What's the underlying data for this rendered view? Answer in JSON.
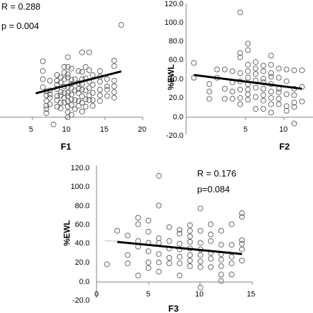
{
  "colors": {
    "points": "#555555",
    "trend": "#000000",
    "axis": "#808080"
  },
  "chart_data": [
    {
      "type": "scatter",
      "title": "",
      "xlabel": "F1",
      "ylabel": "",
      "xlim": [
        0,
        20
      ],
      "ylim": [
        -20,
        120
      ],
      "xticks": [
        "5",
        "10",
        "15",
        "20"
      ],
      "yticks": [],
      "stats": {
        "r": "R = 0.288",
        "p": "p = 0.004"
      },
      "trendline": {
        "x": [
          5,
          17
        ],
        "y": [
          29.5,
          56.5
        ]
      },
      "points": [
        [
          6,
          69
        ],
        [
          6,
          57
        ],
        [
          6,
          47
        ],
        [
          6,
          37
        ],
        [
          6.5,
          32
        ],
        [
          6.5,
          27
        ],
        [
          6.5,
          20
        ],
        [
          6.5,
          14
        ],
        [
          6.5,
          10
        ],
        [
          6.5,
          5
        ],
        [
          7,
          45
        ],
        [
          7,
          33
        ],
        [
          7,
          28
        ],
        [
          7,
          24
        ],
        [
          7,
          16
        ],
        [
          7.5,
          -9
        ],
        [
          8,
          52
        ],
        [
          8,
          45
        ],
        [
          8,
          40
        ],
        [
          8,
          35
        ],
        [
          8,
          26
        ],
        [
          8,
          21
        ],
        [
          8,
          13
        ],
        [
          8.5,
          49
        ],
        [
          8.5,
          43
        ],
        [
          8.5,
          31
        ],
        [
          8.5,
          27
        ],
        [
          8.5,
          18
        ],
        [
          8.5,
          11
        ],
        [
          9,
          62
        ],
        [
          9,
          55
        ],
        [
          9,
          47
        ],
        [
          9,
          38
        ],
        [
          9,
          30
        ],
        [
          9,
          24
        ],
        [
          9,
          18
        ],
        [
          9.5,
          74
        ],
        [
          9.5,
          62
        ],
        [
          9.5,
          53
        ],
        [
          9.5,
          49
        ],
        [
          9.5,
          37
        ],
        [
          9.5,
          30
        ],
        [
          9.5,
          26
        ],
        [
          9.5,
          20
        ],
        [
          9.5,
          13
        ],
        [
          9.5,
          6
        ],
        [
          9.5,
          0
        ],
        [
          10,
          60
        ],
        [
          10,
          46
        ],
        [
          10,
          41
        ],
        [
          10,
          36
        ],
        [
          10,
          28
        ],
        [
          10,
          22
        ],
        [
          10,
          15
        ],
        [
          10,
          3
        ],
        [
          10.5,
          47
        ],
        [
          10.5,
          33
        ],
        [
          10.5,
          21
        ],
        [
          10.5,
          10
        ],
        [
          11,
          57
        ],
        [
          11,
          42
        ],
        [
          11,
          35
        ],
        [
          11,
          30
        ],
        [
          11,
          20
        ],
        [
          11,
          14
        ],
        [
          11.5,
          80
        ],
        [
          11.5,
          56
        ],
        [
          11.5,
          47
        ],
        [
          11.5,
          41
        ],
        [
          11.5,
          34
        ],
        [
          11.5,
          26
        ],
        [
          11.5,
          18
        ],
        [
          11.5,
          7
        ],
        [
          12,
          62
        ],
        [
          12,
          48
        ],
        [
          12,
          33
        ],
        [
          12,
          22
        ],
        [
          12,
          13
        ],
        [
          12.5,
          80
        ],
        [
          12.5,
          58
        ],
        [
          12.5,
          44
        ],
        [
          12.5,
          36
        ],
        [
          12.5,
          27
        ],
        [
          12.5,
          21
        ],
        [
          13,
          52
        ],
        [
          13,
          40
        ],
        [
          13,
          30
        ],
        [
          13,
          21
        ],
        [
          13,
          14
        ],
        [
          14,
          57
        ],
        [
          14,
          50
        ],
        [
          14,
          44
        ],
        [
          14,
          34
        ],
        [
          14,
          27
        ],
        [
          14,
          20
        ],
        [
          15,
          47
        ],
        [
          15,
          38
        ],
        [
          15,
          34
        ],
        [
          15,
          26
        ],
        [
          16,
          70
        ],
        [
          16,
          63
        ],
        [
          16,
          45
        ],
        [
          16,
          38
        ],
        [
          16,
          31
        ],
        [
          16,
          24
        ],
        [
          17,
          114
        ]
      ]
    },
    {
      "type": "scatter",
      "title": "",
      "xlabel": "F2",
      "ylabel": "%EWL",
      "xlim": [
        0,
        15
      ],
      "ylim": [
        -20,
        120
      ],
      "xticks": [
        "5",
        "10"
      ],
      "yticks": [
        "120.0",
        "100.0",
        "80.0",
        "60.0",
        "40.0",
        "20.0",
        "0.0",
        "-20.0"
      ],
      "stats": {
        "r": "",
        "p": ""
      },
      "trendline": {
        "x": [
          1,
          15
        ],
        "y": [
          46,
          31
        ]
      },
      "points": [
        [
          1,
          59
        ],
        [
          1,
          43
        ],
        [
          3,
          20
        ],
        [
          3,
          28
        ],
        [
          3,
          36
        ],
        [
          4,
          52
        ],
        [
          4,
          43
        ],
        [
          5,
          52
        ],
        [
          5,
          31
        ],
        [
          5,
          20
        ],
        [
          6,
          50
        ],
        [
          6,
          38
        ],
        [
          6,
          28
        ],
        [
          6,
          20
        ],
        [
          7,
          114
        ],
        [
          7,
          70
        ],
        [
          7,
          65
        ],
        [
          7,
          48
        ],
        [
          7,
          39
        ],
        [
          7,
          30
        ],
        [
          7,
          21
        ],
        [
          7,
          14
        ],
        [
          8,
          80
        ],
        [
          8,
          73
        ],
        [
          8,
          57
        ],
        [
          8,
          50
        ],
        [
          8,
          43
        ],
        [
          8,
          36
        ],
        [
          8,
          30
        ],
        [
          8,
          25
        ],
        [
          8,
          19
        ],
        [
          9,
          60
        ],
        [
          9,
          53
        ],
        [
          9,
          47
        ],
        [
          9,
          40
        ],
        [
          9,
          32
        ],
        [
          9,
          22
        ],
        [
          9,
          9
        ],
        [
          10,
          56
        ],
        [
          10,
          50
        ],
        [
          10,
          42
        ],
        [
          10,
          38
        ],
        [
          10,
          31
        ],
        [
          10,
          24
        ],
        [
          10,
          18
        ],
        [
          10,
          9
        ],
        [
          11,
          67
        ],
        [
          11,
          57
        ],
        [
          11,
          48
        ],
        [
          11,
          44
        ],
        [
          11,
          36
        ],
        [
          11,
          28
        ],
        [
          11,
          21
        ],
        [
          11,
          14
        ],
        [
          11,
          5
        ],
        [
          12,
          53
        ],
        [
          12,
          43
        ],
        [
          12,
          31
        ],
        [
          12,
          27
        ],
        [
          12,
          20
        ],
        [
          12,
          14
        ],
        [
          13,
          52
        ],
        [
          13,
          39
        ],
        [
          13,
          25
        ],
        [
          13,
          12
        ],
        [
          13,
          7
        ],
        [
          14,
          51
        ],
        [
          14,
          31
        ],
        [
          14,
          24
        ],
        [
          14,
          16
        ],
        [
          14,
          11
        ],
        [
          14,
          -7
        ],
        [
          15,
          51
        ],
        [
          15,
          33
        ],
        [
          15,
          17
        ]
      ]
    },
    {
      "type": "scatter",
      "title": "",
      "xlabel": "F3",
      "ylabel": "%EWL",
      "xlim": [
        0,
        15
      ],
      "ylim": [
        -20,
        120
      ],
      "xticks": [
        "0",
        "5",
        "10",
        "15"
      ],
      "yticks": [
        "120.0",
        "100.0",
        "80.0",
        "60.0",
        "40.0",
        "20.0",
        "0.0",
        "-20.0"
      ],
      "stats": {
        "r": "R = 0.176",
        "p": "p=0.084"
      },
      "trendline": {
        "x": [
          2,
          14
        ],
        "y": [
          43,
          30
        ]
      },
      "points": [
        [
          1,
          19
        ],
        [
          2,
          55
        ],
        [
          3,
          50
        ],
        [
          3,
          29
        ],
        [
          3,
          20
        ],
        [
          4,
          69
        ],
        [
          4,
          62
        ],
        [
          4,
          44
        ],
        [
          4,
          38
        ],
        [
          4,
          7
        ],
        [
          5,
          66
        ],
        [
          5,
          54
        ],
        [
          5,
          42
        ],
        [
          5,
          33
        ],
        [
          5,
          21
        ],
        [
          5,
          15
        ],
        [
          6,
          114
        ],
        [
          6,
          82
        ],
        [
          6,
          47
        ],
        [
          6,
          42
        ],
        [
          6,
          30
        ],
        [
          6,
          21
        ],
        [
          6,
          11
        ],
        [
          7,
          59
        ],
        [
          7,
          44
        ],
        [
          7,
          36
        ],
        [
          7,
          26
        ],
        [
          7,
          20
        ],
        [
          8,
          56
        ],
        [
          8,
          52
        ],
        [
          8,
          41
        ],
        [
          8,
          35
        ],
        [
          8,
          27
        ],
        [
          8,
          20
        ],
        [
          8,
          7
        ],
        [
          9,
          61
        ],
        [
          9,
          55
        ],
        [
          9,
          49
        ],
        [
          9,
          43
        ],
        [
          9,
          36
        ],
        [
          9,
          29
        ],
        [
          9,
          23
        ],
        [
          9,
          17
        ],
        [
          10,
          79
        ],
        [
          10,
          55
        ],
        [
          10,
          42
        ],
        [
          10,
          35
        ],
        [
          10,
          29
        ],
        [
          10,
          22
        ],
        [
          10,
          16
        ],
        [
          10,
          -6
        ],
        [
          11,
          62
        ],
        [
          11,
          51
        ],
        [
          11,
          44
        ],
        [
          11,
          31
        ],
        [
          11,
          25
        ],
        [
          11,
          16
        ],
        [
          12,
          55
        ],
        [
          12,
          40
        ],
        [
          12,
          30
        ],
        [
          12,
          24
        ],
        [
          12,
          17
        ],
        [
          12,
          8
        ],
        [
          12,
          1
        ],
        [
          13,
          62
        ],
        [
          13,
          40
        ],
        [
          13,
          27
        ],
        [
          13,
          20
        ],
        [
          13,
          8
        ],
        [
          14,
          74
        ],
        [
          14,
          70
        ],
        [
          14,
          45
        ],
        [
          14,
          41
        ],
        [
          14,
          35
        ],
        [
          14,
          23
        ]
      ]
    }
  ]
}
